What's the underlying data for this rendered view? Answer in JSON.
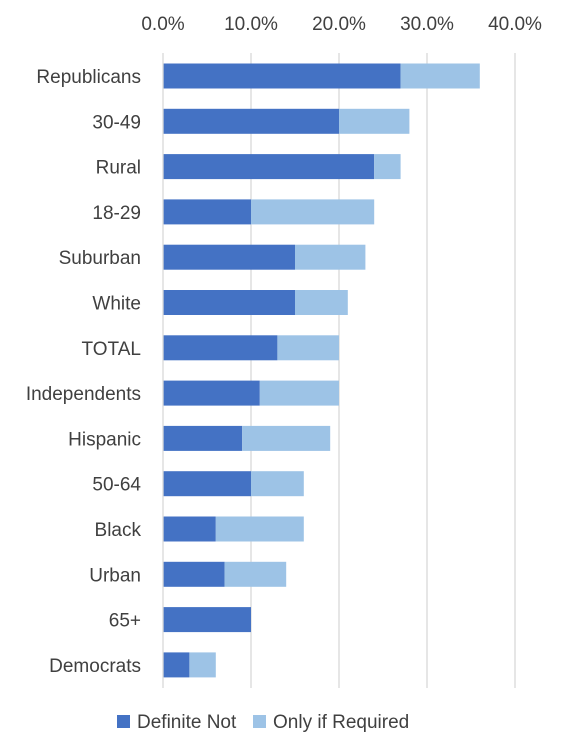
{
  "chart_data": {
    "type": "bar",
    "orientation": "horizontal",
    "stacked": true,
    "categories": [
      "Republicans",
      "30-49",
      "Rural",
      "18-29",
      "Suburban",
      "White",
      "TOTAL",
      "Independents",
      "Hispanic",
      "50-64",
      "Black",
      "Urban",
      "65+",
      "Democrats"
    ],
    "series": [
      {
        "name": "Definite Not",
        "color": "#4472c4",
        "values": [
          27,
          20,
          24,
          10,
          15,
          15,
          13,
          11,
          9,
          10,
          6,
          7,
          10,
          3
        ]
      },
      {
        "name": "Only if Required",
        "color": "#9dc3e6",
        "values": [
          9,
          8,
          3,
          14,
          8,
          6,
          7,
          9,
          10,
          6,
          10,
          7,
          0,
          3
        ]
      }
    ],
    "xlim": [
      0,
      40
    ],
    "x_ticks": [
      0,
      10,
      20,
      30,
      40
    ],
    "x_tick_labels": [
      "0.0%",
      "10.0%",
      "20.0%",
      "30.0%",
      "40.0%"
    ],
    "x_axis_position": "top",
    "grid": true,
    "grid_color": "#d9d9d9",
    "legend_position": "bottom",
    "title": "",
    "xlabel": "",
    "ylabel": ""
  }
}
